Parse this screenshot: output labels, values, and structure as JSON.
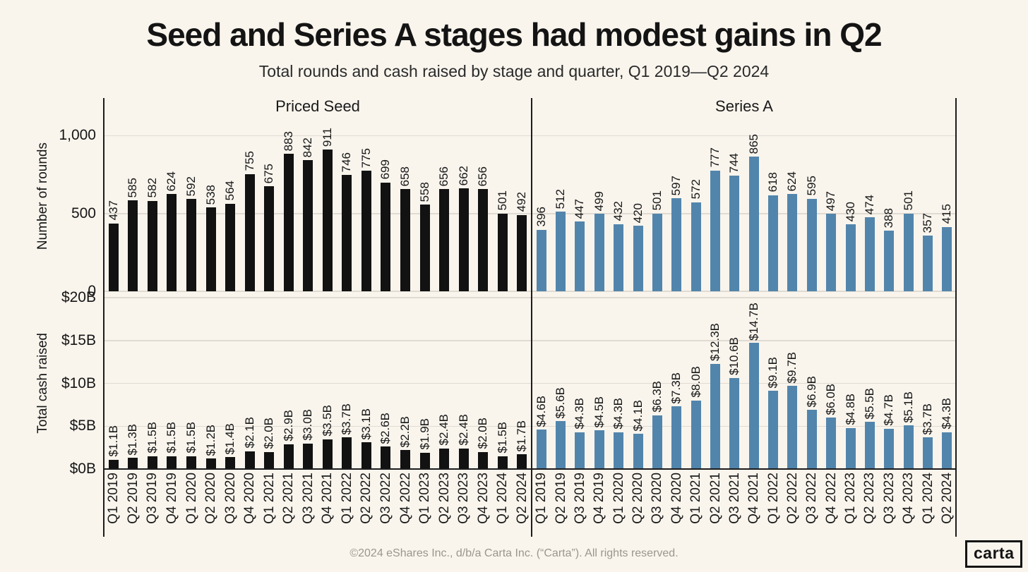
{
  "header": {
    "title": "Seed and Series A stages had modest gains in Q2",
    "subtitle": "Total rounds and cash raised by stage and quarter, Q1 2019—Q2 2024"
  },
  "footer": {
    "copyright": "©2024 eShares Inc., d/b/a Carta Inc. (“Carta”). All rights reserved.",
    "logo_text": "carta"
  },
  "colors": {
    "background": "#F9F5ED",
    "priced_seed_bar": "#121212",
    "series_a_bar": "#5285AC",
    "gridline": "#E0DBD2",
    "axis_line": "#1C1C1C",
    "text": "#161616",
    "footer_text": "#9B968D"
  },
  "chart_data": {
    "type": "bar",
    "layout_hint": "2x2 small multiples; columns = stages, rows = metrics; grid on; value labels rotated 90deg above bars",
    "categories": [
      "Q1 2019",
      "Q2 2019",
      "Q3 2019",
      "Q4 2019",
      "Q1 2020",
      "Q2 2020",
      "Q3 2020",
      "Q4 2020",
      "Q1 2021",
      "Q2 2021",
      "Q3 2021",
      "Q4 2021",
      "Q1 2022",
      "Q2 2022",
      "Q3 2022",
      "Q4 2022",
      "Q1 2023",
      "Q2 2023",
      "Q3 2023",
      "Q4 2023",
      "Q1 2024",
      "Q2 2024"
    ],
    "col_titles": [
      "Priced Seed",
      "Series A"
    ],
    "rows": [
      {
        "ylabel": "Number of rounds",
        "ylim": [
          0,
          1224
        ],
        "yticks": [
          {
            "value": 0,
            "label": "0"
          },
          {
            "value": 500,
            "label": "500"
          },
          {
            "value": 1000,
            "label": "1,000"
          }
        ],
        "series": [
          {
            "name": "Priced Seed",
            "color_key": "priced_seed_bar",
            "values": [
              437,
              585,
              582,
              624,
              592,
              538,
              564,
              755,
              675,
              883,
              842,
              911,
              746,
              775,
              699,
              658,
              558,
              656,
              662,
              656,
              501,
              492
            ],
            "labels": [
              "437",
              "585",
              "582",
              "624",
              "592",
              "538",
              "564",
              "755",
              "675",
              "883",
              "842",
              "911",
              "746",
              "775",
              "699",
              "658",
              "558",
              "656",
              "662",
              "656",
              "501",
              "492"
            ]
          },
          {
            "name": "Series A",
            "color_key": "series_a_bar",
            "values": [
              396,
              512,
              447,
              499,
              432,
              420,
              501,
              597,
              572,
              777,
              744,
              865,
              618,
              624,
              595,
              497,
              430,
              474,
              388,
              501,
              357,
              415
            ],
            "labels": [
              "396",
              "512",
              "447",
              "499",
              "432",
              "420",
              "501",
              "597",
              "572",
              "777",
              "744",
              "865",
              "618",
              "624",
              "595",
              "497",
              "430",
              "474",
              "388",
              "501",
              "357",
              "415"
            ]
          }
        ]
      },
      {
        "ylabel": "Total cash raised",
        "ylim": [
          0,
          20
        ],
        "yticks": [
          {
            "value": 0,
            "label": "$0B"
          },
          {
            "value": 5,
            "label": "$5B"
          },
          {
            "value": 10,
            "label": "$10B"
          },
          {
            "value": 15,
            "label": "$15B"
          },
          {
            "value": 20,
            "label": "$20B"
          }
        ],
        "series": [
          {
            "name": "Priced Seed",
            "color_key": "priced_seed_bar",
            "values": [
              1.1,
              1.3,
              1.5,
              1.5,
              1.5,
              1.2,
              1.4,
              2.1,
              2.0,
              2.9,
              3.0,
              3.5,
              3.7,
              3.1,
              2.6,
              2.2,
              1.9,
              2.4,
              2.4,
              2.0,
              1.5,
              1.7
            ],
            "labels": [
              "$1.1B",
              "$1.3B",
              "$1.5B",
              "$1.5B",
              "$1.5B",
              "$1.2B",
              "$1.4B",
              "$2.1B",
              "$2.0B",
              "$2.9B",
              "$3.0B",
              "$3.5B",
              "$3.7B",
              "$3.1B",
              "$2.6B",
              "$2.2B",
              "$1.9B",
              "$2.4B",
              "$2.4B",
              "$2.0B",
              "$1.5B",
              "$1.7B"
            ]
          },
          {
            "name": "Series A",
            "color_key": "series_a_bar",
            "values": [
              4.6,
              5.6,
              4.3,
              4.5,
              4.3,
              4.1,
              6.3,
              7.3,
              8.0,
              12.3,
              10.6,
              14.7,
              9.1,
              9.7,
              6.9,
              6.0,
              4.8,
              5.5,
              4.7,
              5.1,
              3.7,
              4.3
            ],
            "labels": [
              "$4.6B",
              "$5.6B",
              "$4.3B",
              "$4.5B",
              "$4.3B",
              "$4.1B",
              "$6.3B",
              "$7.3B",
              "$8.0B",
              "$12.3B",
              "$10.6B",
              "$14.7B",
              "$9.1B",
              "$9.7B",
              "$6.9B",
              "$6.0B",
              "$4.8B",
              "$5.5B",
              "$4.7B",
              "$5.1B",
              "$3.7B",
              "$4.3B"
            ]
          }
        ]
      }
    ]
  }
}
